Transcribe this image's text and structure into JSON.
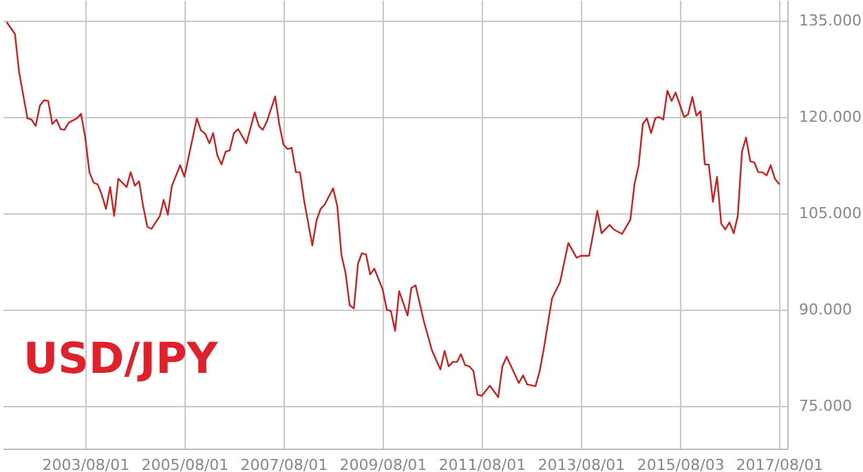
{
  "chart_data": {
    "type": "line",
    "annotations": [
      "USD/JPY"
    ],
    "x": [
      "2002-01",
      "2002-03",
      "2002-04",
      "2002-06",
      "2002-07",
      "2002-08",
      "2002-09",
      "2002-10",
      "2002-11",
      "2002-12",
      "2003-01",
      "2003-02",
      "2003-03",
      "2003-04",
      "2003-06",
      "2003-07",
      "2003-08",
      "2003-09",
      "2003-10",
      "2003-11",
      "2003-12",
      "2004-01",
      "2004-02",
      "2004-03",
      "2004-04",
      "2004-06",
      "2004-07",
      "2004-08",
      "2004-09",
      "2004-10",
      "2004-11",
      "2004-12",
      "2005-02",
      "2005-03",
      "2005-04",
      "2005-05",
      "2005-07",
      "2005-08",
      "2005-11",
      "2005-12",
      "2006-01",
      "2006-02",
      "2006-03",
      "2006-04",
      "2006-05",
      "2006-06",
      "2006-07",
      "2006-08",
      "2006-09",
      "2006-11",
      "2007-01",
      "2007-02",
      "2007-03",
      "2007-04",
      "2007-06",
      "2007-07",
      "2007-08",
      "2007-09",
      "2007-10",
      "2007-11",
      "2007-12",
      "2008-01",
      "2008-03",
      "2008-04",
      "2008-05",
      "2008-06",
      "2008-08",
      "2008-09",
      "2008-10",
      "2008-11",
      "2008-12",
      "2009-01",
      "2009-02",
      "2009-03",
      "2009-04",
      "2009-05",
      "2009-06",
      "2009-08",
      "2009-09",
      "2009-10",
      "2009-11",
      "2009-12",
      "2010-02",
      "2010-03",
      "2010-04",
      "2010-06",
      "2010-08",
      "2010-10",
      "2010-11",
      "2010-12",
      "2011-01",
      "2011-02",
      "2011-03",
      "2011-04",
      "2011-05",
      "2011-06",
      "2011-07",
      "2011-08",
      "2011-10",
      "2011-12",
      "2012-01",
      "2012-02",
      "2012-04",
      "2012-05",
      "2012-06",
      "2012-07",
      "2012-09",
      "2012-10",
      "2012-11",
      "2013-01",
      "2013-03",
      "2013-05",
      "2013-07",
      "2013-08",
      "2013-10",
      "2013-12",
      "2014-01",
      "2014-03",
      "2014-04",
      "2014-06",
      "2014-08",
      "2014-09",
      "2014-10",
      "2014-11",
      "2014-12",
      "2015-01",
      "2015-02",
      "2015-03",
      "2015-04",
      "2015-05",
      "2015-06",
      "2015-07",
      "2015-09",
      "2015-10",
      "2015-11",
      "2015-12",
      "2016-01",
      "2016-02",
      "2016-03",
      "2016-04",
      "2016-05",
      "2016-06",
      "2016-07",
      "2016-08",
      "2016-09",
      "2016-10",
      "2016-11",
      "2016-12",
      "2017-01",
      "2017-02",
      "2017-03",
      "2017-04",
      "2017-05",
      "2017-06",
      "2017-07",
      "2017-08"
    ],
    "series": [
      {
        "color": "#cc1f1f",
        "values": [
          134.7,
          132.9,
          126.9,
          119.8,
          119.6,
          118.6,
          121.8,
          122.6,
          122.5,
          118.9,
          119.6,
          118.1,
          118.0,
          119.1,
          119.8,
          120.5,
          116.8,
          111.4,
          109.8,
          109.5,
          107.9,
          105.7,
          109.1,
          104.6,
          110.4,
          109.1,
          111.4,
          109.3,
          110.0,
          106.1,
          102.9,
          102.6,
          104.6,
          107.1,
          104.8,
          109.3,
          112.5,
          110.7,
          119.8,
          117.9,
          117.4,
          115.9,
          117.5,
          114.0,
          112.6,
          114.6,
          114.8,
          117.5,
          118.1,
          115.9,
          120.7,
          118.6,
          118.0,
          119.3,
          123.2,
          118.9,
          115.7,
          115.0,
          115.2,
          111.4,
          111.4,
          106.9,
          100.0,
          103.9,
          105.7,
          106.4,
          108.9,
          106.1,
          98.6,
          95.7,
          90.7,
          90.2,
          97.2,
          98.8,
          98.6,
          95.5,
          96.4,
          93.2,
          90.0,
          89.8,
          86.7,
          92.9,
          89.1,
          93.4,
          93.8,
          88.2,
          83.6,
          80.7,
          83.6,
          81.2,
          81.9,
          81.9,
          83.1,
          81.4,
          81.2,
          80.5,
          76.8,
          76.6,
          78.2,
          76.4,
          81.2,
          82.7,
          80.0,
          78.6,
          79.8,
          78.4,
          78.1,
          80.4,
          83.9,
          91.8,
          94.3,
          100.4,
          98.1,
          98.4,
          98.4,
          105.4,
          101.9,
          103.2,
          102.5,
          101.8,
          104.0,
          109.6,
          112.4,
          118.9,
          119.8,
          117.5,
          119.8,
          120.0,
          119.6,
          124.1,
          122.5,
          123.8,
          120.0,
          120.4,
          123.1,
          120.2,
          120.9,
          112.6,
          112.6,
          106.8,
          110.7,
          103.4,
          102.5,
          103.6,
          101.9,
          104.6,
          114.6,
          116.8,
          113.1,
          112.9,
          111.4,
          111.4,
          110.9,
          112.5,
          110.4,
          109.6
        ]
      }
    ],
    "xlim": [
      "2001-12",
      "2017-10"
    ],
    "xticks": [
      {
        "value": "2003-08-01",
        "label": "2003/08/01"
      },
      {
        "value": "2005-08-01",
        "label": "2005/08/01"
      },
      {
        "value": "2007-08-01",
        "label": "2007/08/01"
      },
      {
        "value": "2009-08-01",
        "label": "2009/08/01"
      },
      {
        "value": "2011-08-01",
        "label": "2011/08/01"
      },
      {
        "value": "2013-08-01",
        "label": "2013/08/01"
      },
      {
        "value": "2015-08-03",
        "label": "2015/08/03"
      },
      {
        "value": "2017-08-01",
        "label": "2017/08/01"
      }
    ],
    "ylim": [
      68.4,
      138.2
    ],
    "yticks": [
      {
        "value": 75,
        "label": "75.000"
      },
      {
        "value": 90,
        "label": "90.000"
      },
      {
        "value": 105,
        "label": "105.000"
      },
      {
        "value": 120,
        "label": "120.000"
      },
      {
        "value": 135,
        "label": "135.000"
      }
    ],
    "grid": true,
    "marker": "none",
    "line_style": "solid"
  }
}
